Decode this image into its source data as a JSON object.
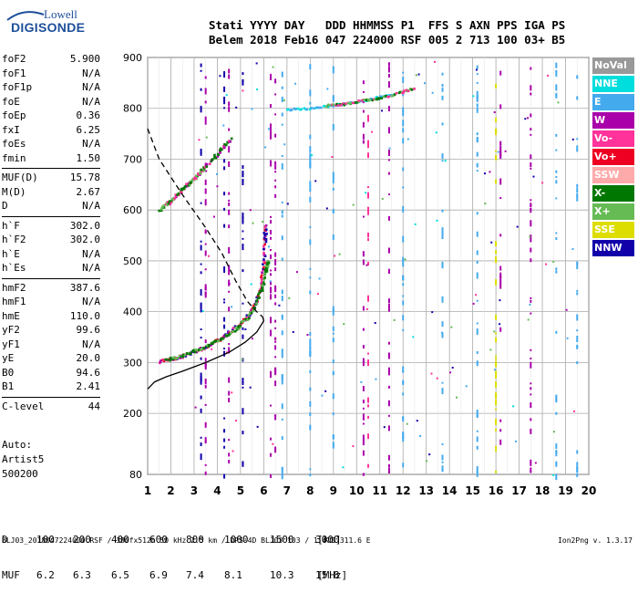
{
  "logo": {
    "top": "Lowell",
    "bottom": "DIGISONDE"
  },
  "header": {
    "line1": "Stati YYYY DAY   DDD HHMMSS P1  FFS S AXN PPS IGA PS",
    "line2": "Belem 2018 Feb16 047 224000 RSF 005 2 713 100 03+ B5"
  },
  "params": [
    [
      [
        "foF2",
        "5.900"
      ],
      [
        "foF1",
        "N/A"
      ],
      [
        "foF1p",
        "N/A"
      ],
      [
        "foE",
        "N/A"
      ],
      [
        "foEp",
        "0.36"
      ],
      [
        "fxI",
        "6.25"
      ],
      [
        "foEs",
        "N/A"
      ],
      [
        "fmin",
        "1.50"
      ]
    ],
    [
      [
        "MUF(D)",
        "15.78"
      ],
      [
        "M(D)",
        "2.67"
      ],
      [
        "D",
        "N/A"
      ]
    ],
    [
      [
        "h`F",
        "302.0"
      ],
      [
        "h`F2",
        "302.0"
      ],
      [
        "h`E",
        "N/A"
      ],
      [
        "h`Es",
        "N/A"
      ]
    ],
    [
      [
        "hmF2",
        "387.6"
      ],
      [
        "hmF1",
        "N/A"
      ],
      [
        "hmE",
        "110.0"
      ],
      [
        "yF2",
        "99.6"
      ],
      [
        "yF1",
        "N/A"
      ],
      [
        "yE",
        "20.0"
      ],
      [
        "B0",
        "94.6"
      ],
      [
        "B1",
        "2.41"
      ]
    ],
    [
      [
        "C-level",
        "44"
      ]
    ]
  ],
  "auto": {
    "line1": "Auto:",
    "line2": "Artist5",
    "line3": "500200"
  },
  "legend": [
    {
      "label": "NoVal",
      "color": "#999999"
    },
    {
      "label": "NNE",
      "color": "#00dddd"
    },
    {
      "label": "E",
      "color": "#44aaee"
    },
    {
      "label": "W",
      "color": "#aa00aa"
    },
    {
      "label": "Vo-",
      "color": "#ff3399"
    },
    {
      "label": "Vo+",
      "color": "#ee0022"
    },
    {
      "label": "SSW",
      "color": "#ffaaaa"
    },
    {
      "label": "X-",
      "color": "#007700"
    },
    {
      "label": "X+",
      "color": "#66bb55"
    },
    {
      "label": "SSE",
      "color": "#dddd00"
    },
    {
      "label": "NNW",
      "color": "#1100aa"
    }
  ],
  "muf_table": {
    "d_label": "D",
    "d_values": [
      "100",
      "200",
      "400",
      "600",
      "800",
      "1000",
      "1500",
      "3000"
    ],
    "d_unit": "[km]",
    "muf_label": "MUF",
    "muf_values": [
      "6.2",
      "6.3",
      "6.5",
      "6.9",
      "7.4",
      "8.1",
      "10.3",
      "15.8"
    ],
    "muf_unit": "[MHz]"
  },
  "footer": {
    "left": "BLJ03_2018047224000.RSF / 380fx512h 50 kHz 2.5 km / DPS-4D BLJ03 103 / 1.4 S 311.6 E",
    "right": "Ion2Png v. 1.3.17"
  },
  "chart_data": {
    "type": "scatter",
    "xlim": [
      1,
      20
    ],
    "ylim": [
      80,
      900
    ],
    "x_ticks": [
      1,
      2,
      3,
      4,
      5,
      6,
      7,
      8,
      9,
      10,
      11,
      12,
      13,
      14,
      15,
      16,
      17,
      18,
      19,
      20
    ],
    "y_ticks": [
      80,
      200,
      300,
      400,
      500,
      600,
      700,
      800,
      900
    ],
    "grid": true,
    "traces": {
      "o_trace": [
        [
          1.5,
          302
        ],
        [
          2.0,
          306
        ],
        [
          2.5,
          312
        ],
        [
          3.0,
          320
        ],
        [
          3.5,
          330
        ],
        [
          4.0,
          343
        ],
        [
          4.5,
          358
        ],
        [
          5.0,
          375
        ],
        [
          5.4,
          395
        ],
        [
          5.7,
          420
        ],
        [
          5.9,
          455
        ],
        [
          6.0,
          500
        ],
        [
          6.05,
          545
        ],
        [
          6.1,
          570
        ]
      ],
      "x_trace": [
        [
          1.8,
          305
        ],
        [
          2.5,
          313
        ],
        [
          3.2,
          325
        ],
        [
          3.8,
          338
        ],
        [
          4.4,
          352
        ],
        [
          5.0,
          372
        ],
        [
          5.5,
          400
        ],
        [
          5.9,
          440
        ],
        [
          6.1,
          480
        ],
        [
          6.2,
          500
        ]
      ],
      "multi_hop": [
        [
          1.9,
          610
        ],
        [
          2.5,
          640
        ],
        [
          3.2,
          670
        ],
        [
          3.8,
          700
        ],
        [
          4.2,
          720
        ],
        [
          4.6,
          740
        ]
      ],
      "multi_hop_x": [
        [
          1.5,
          600
        ],
        [
          2.0,
          617
        ],
        [
          2.6,
          645
        ],
        [
          3.0,
          660
        ],
        [
          3.4,
          680
        ]
      ],
      "high_echo_e": [
        [
          7.0,
          797
        ],
        [
          8.0,
          800
        ],
        [
          9.0,
          805
        ],
        [
          10.0,
          812
        ],
        [
          11.0,
          822
        ],
        [
          11.6,
          826
        ]
      ],
      "high_echo_x": [
        [
          8.7,
          805
        ],
        [
          9.5,
          808
        ],
        [
          10.2,
          815
        ],
        [
          11.0,
          820
        ],
        [
          12.0,
          832
        ],
        [
          12.5,
          840
        ]
      ],
      "profile_solid": [
        [
          1.0,
          248
        ],
        [
          1.3,
          262
        ],
        [
          1.8,
          272
        ],
        [
          2.5,
          283
        ],
        [
          3.5,
          300
        ],
        [
          4.5,
          320
        ],
        [
          5.2,
          340
        ],
        [
          5.7,
          360
        ],
        [
          6.0,
          382
        ],
        [
          5.95,
          390
        ]
      ],
      "profile_dashed": [
        [
          1.0,
          760
        ],
        [
          1.5,
          700
        ],
        [
          2.5,
          630
        ],
        [
          3.5,
          565
        ],
        [
          4.2,
          515
        ],
        [
          4.8,
          460
        ],
        [
          5.3,
          420
        ],
        [
          5.7,
          400
        ],
        [
          5.95,
          390
        ]
      ]
    },
    "vertical_columns": [
      {
        "x": 3.3,
        "color": "#1100aa"
      },
      {
        "x": 3.5,
        "color": "#aa00aa"
      },
      {
        "x": 4.3,
        "color": "#1100aa"
      },
      {
        "x": 4.5,
        "color": "#aa00aa"
      },
      {
        "x": 5.1,
        "color": "#1100aa"
      },
      {
        "x": 6.3,
        "color": "#aa00aa"
      },
      {
        "x": 6.5,
        "color": "#aa00aa"
      },
      {
        "x": 6.8,
        "color": "#44aaee"
      },
      {
        "x": 8.0,
        "color": "#44aaee"
      },
      {
        "x": 9.0,
        "color": "#44aaee"
      },
      {
        "x": 10.3,
        "color": "#aa00aa"
      },
      {
        "x": 10.5,
        "color": "#ff3399"
      },
      {
        "x": 11.4,
        "color": "#aa00aa"
      },
      {
        "x": 12.0,
        "color": "#44aaee"
      },
      {
        "x": 13.7,
        "color": "#44aaee"
      },
      {
        "x": 15.2,
        "color": "#44aaee"
      },
      {
        "x": 16.0,
        "color": "#dddd00"
      },
      {
        "x": 16.2,
        "color": "#aa00aa"
      },
      {
        "x": 17.5,
        "color": "#aa00aa"
      },
      {
        "x": 18.6,
        "color": "#44aaee"
      },
      {
        "x": 19.5,
        "color": "#44aaee"
      }
    ]
  }
}
